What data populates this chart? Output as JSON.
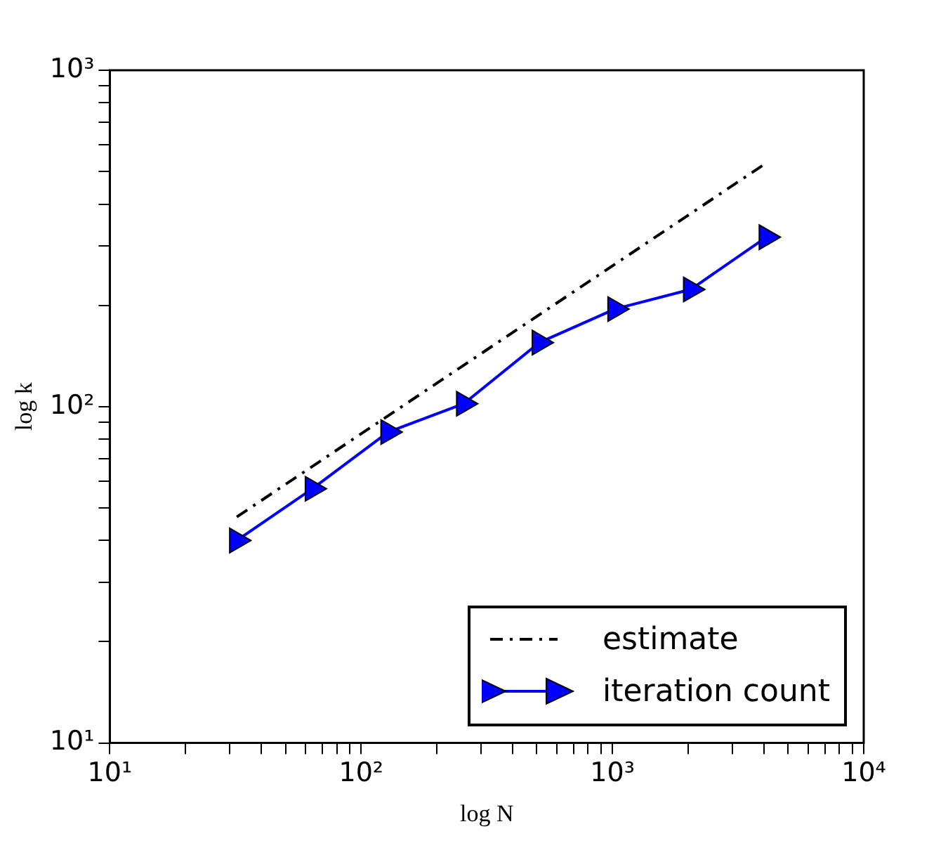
{
  "chart_data": {
    "type": "line",
    "xlabel": "log N",
    "ylabel": "log k",
    "log": "xy",
    "grid": false,
    "legend": "bottom right",
    "xlim": [
      10,
      10000
    ],
    "ylim": [
      10,
      1000
    ],
    "xticks": [
      {
        "value": 10,
        "label": "10¹"
      },
      {
        "value": 20,
        "label": null
      },
      {
        "value": 30,
        "label": null
      },
      {
        "value": 40,
        "label": null
      },
      {
        "value": 50,
        "label": null
      },
      {
        "value": 60,
        "label": null
      },
      {
        "value": 70,
        "label": null
      },
      {
        "value": 80,
        "label": null
      },
      {
        "value": 90,
        "label": null
      },
      {
        "value": 100,
        "label": "10²"
      },
      {
        "value": 200,
        "label": null
      },
      {
        "value": 300,
        "label": null
      },
      {
        "value": 400,
        "label": null
      },
      {
        "value": 500,
        "label": null
      },
      {
        "value": 600,
        "label": null
      },
      {
        "value": 700,
        "label": null
      },
      {
        "value": 800,
        "label": null
      },
      {
        "value": 900,
        "label": null
      },
      {
        "value": 1000,
        "label": "10³"
      },
      {
        "value": 2000,
        "label": null
      },
      {
        "value": 3000,
        "label": null
      },
      {
        "value": 4000,
        "label": null
      },
      {
        "value": 5000,
        "label": null
      },
      {
        "value": 6000,
        "label": null
      },
      {
        "value": 7000,
        "label": null
      },
      {
        "value": 8000,
        "label": null
      },
      {
        "value": 9000,
        "label": null
      },
      {
        "value": 10000,
        "label": "10⁴"
      }
    ],
    "yticks": [
      {
        "value": 10,
        "label": "10¹"
      },
      {
        "value": 20,
        "label": null
      },
      {
        "value": 30,
        "label": null
      },
      {
        "value": 40,
        "label": null
      },
      {
        "value": 50,
        "label": null
      },
      {
        "value": 60,
        "label": null
      },
      {
        "value": 70,
        "label": null
      },
      {
        "value": 80,
        "label": null
      },
      {
        "value": 90,
        "label": null
      },
      {
        "value": 100,
        "label": "10²"
      },
      {
        "value": 200,
        "label": null
      },
      {
        "value": 300,
        "label": null
      },
      {
        "value": 400,
        "label": null
      },
      {
        "value": 500,
        "label": null
      },
      {
        "value": 600,
        "label": null
      },
      {
        "value": 700,
        "label": null
      },
      {
        "value": 800,
        "label": null
      },
      {
        "value": 900,
        "label": null
      },
      {
        "value": 1000,
        "label": "10³"
      }
    ],
    "series": [
      {
        "name": "estimate",
        "color": "#000000",
        "x": [
          32,
          4096
        ],
        "values": [
          47,
          530
        ],
        "marker": "none",
        "line_style": "dashed"
      },
      {
        "name": "iteration count",
        "color": "#0000ff",
        "x": [
          32,
          64,
          128,
          256,
          512,
          1024,
          2048,
          4096
        ],
        "values": [
          40,
          57,
          84,
          102,
          155,
          195,
          223,
          319
        ],
        "marker": "triangle",
        "line_style": "solid"
      }
    ]
  }
}
